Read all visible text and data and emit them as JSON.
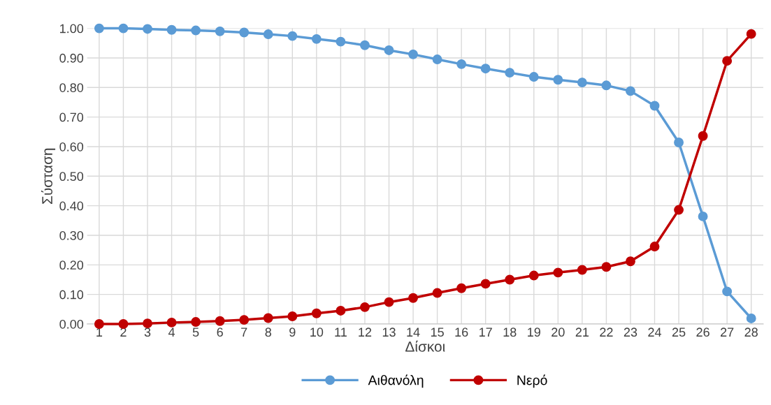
{
  "chart_data": {
    "type": "line",
    "xlabel": "Δίσκοι",
    "ylabel": "Σύσταση",
    "categories": [
      "1",
      "2",
      "3",
      "4",
      "5",
      "6",
      "7",
      "8",
      "9",
      "10",
      "11",
      "12",
      "13",
      "14",
      "15",
      "16",
      "17",
      "18",
      "19",
      "20",
      "21",
      "22",
      "23",
      "24",
      "25",
      "26",
      "27",
      "28"
    ],
    "series": [
      {
        "name": "Αιθανόλη",
        "color": "#5b9bd5",
        "values": [
          1.0,
          1.0,
          0.998,
          0.995,
          0.993,
          0.99,
          0.986,
          0.98,
          0.974,
          0.964,
          0.955,
          0.943,
          0.926,
          0.912,
          0.895,
          0.879,
          0.864,
          0.85,
          0.836,
          0.826,
          0.817,
          0.807,
          0.788,
          0.738,
          0.614,
          0.364,
          0.11,
          0.019
        ]
      },
      {
        "name": "Νερό",
        "color": "#c00000",
        "values": [
          0.0,
          0.0,
          0.002,
          0.005,
          0.007,
          0.01,
          0.014,
          0.02,
          0.026,
          0.036,
          0.045,
          0.057,
          0.074,
          0.088,
          0.105,
          0.121,
          0.136,
          0.15,
          0.164,
          0.174,
          0.183,
          0.193,
          0.212,
          0.262,
          0.386,
          0.636,
          0.89,
          0.981
        ]
      }
    ],
    "ylim": [
      0,
      1
    ],
    "yticks": [
      {
        "value": 0,
        "label": "0.00"
      },
      {
        "value": 0.1,
        "label": "0.10"
      },
      {
        "value": 0.2,
        "label": "0.20"
      },
      {
        "value": 0.3,
        "label": "0.30"
      },
      {
        "value": 0.4,
        "label": "0.40"
      },
      {
        "value": 0.5,
        "label": "0.50"
      },
      {
        "value": 0.6,
        "label": "0.60"
      },
      {
        "value": 0.7,
        "label": "0.70"
      },
      {
        "value": 0.8,
        "label": "0.80"
      },
      {
        "value": 0.9,
        "label": "0.90"
      },
      {
        "value": 1.0,
        "label": "1.00"
      }
    ],
    "grid": true,
    "legend": "bottom",
    "marker": "circle",
    "line_style": "solid"
  }
}
